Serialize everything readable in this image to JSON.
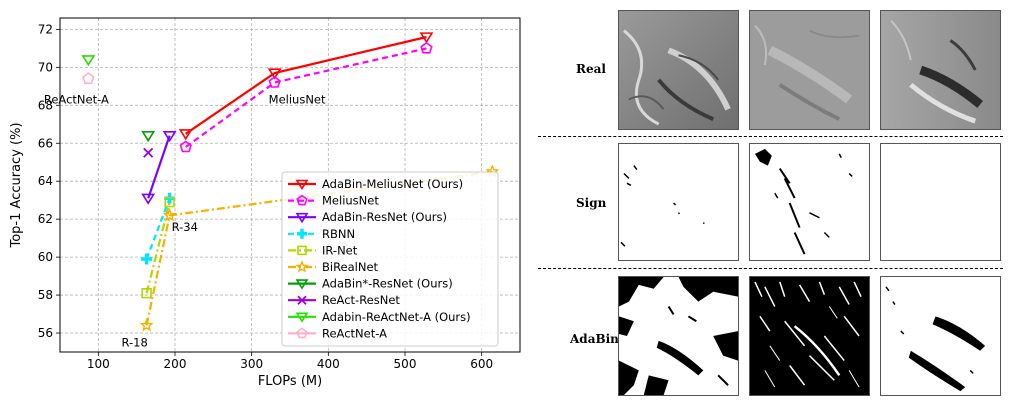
{
  "chart_data": {
    "type": "line",
    "xlabel": "FLOPs (M)",
    "ylabel": "Top-1 Accuracy (%)",
    "xlim": [
      50,
      650
    ],
    "ylim": [
      55,
      72.6
    ],
    "xticks": [
      100,
      200,
      300,
      400,
      500,
      600
    ],
    "yticks": [
      56,
      58,
      60,
      62,
      64,
      66,
      68,
      70,
      72
    ],
    "grid": true,
    "legend_position": "lower-right",
    "series": [
      {
        "name": "AdaBin-MeliusNet (Ours)",
        "color": "#ff0000",
        "marker": "tri-down",
        "linestyle": "solid",
        "x": [
          214,
          330,
          528
        ],
        "y": [
          66.5,
          69.7,
          71.6
        ]
      },
      {
        "name": "MeliusNet",
        "color": "#ff00ff",
        "marker": "pentagon",
        "linestyle": "dashed",
        "x": [
          214,
          330,
          528
        ],
        "y": [
          65.8,
          69.2,
          71.0
        ]
      },
      {
        "name": "AdaBin-ResNet (Ours)",
        "color": "#7b00ff",
        "marker": "tri-down",
        "linestyle": "solid",
        "x": [
          165,
          193
        ],
        "y": [
          63.1,
          66.4
        ]
      },
      {
        "name": "RBNN",
        "color": "#00e5ff",
        "marker": "plus",
        "linestyle": "dashed",
        "x": [
          163,
          193
        ],
        "y": [
          59.9,
          63.1
        ]
      },
      {
        "name": "IR-Net",
        "color": "#b2d600",
        "marker": "square",
        "linestyle": "dashdot",
        "x": [
          163,
          193
        ],
        "y": [
          58.1,
          62.9
        ]
      },
      {
        "name": "BiRealNet",
        "color": "#f5b000",
        "marker": "star",
        "linestyle": "dashdot",
        "x": [
          163,
          193,
          614
        ],
        "y": [
          56.4,
          62.2,
          64.5
        ]
      },
      {
        "name": "AdaBin*-ResNet (Ours)",
        "color": "#00a000",
        "marker": "tri-down",
        "linestyle": "none",
        "x": [
          165
        ],
        "y": [
          66.4
        ]
      },
      {
        "name": "ReAct-ResNet",
        "color": "#9b00d9",
        "marker": "x",
        "linestyle": "none",
        "x": [
          165
        ],
        "y": [
          65.5
        ]
      },
      {
        "name": "Adabin-ReActNet-A (Ours)",
        "color": "#22e000",
        "marker": "tri-down",
        "linestyle": "none",
        "x": [
          87
        ],
        "y": [
          70.4
        ]
      },
      {
        "name": "ReActNet-A",
        "color": "#ffb0c8",
        "marker": "pentagon",
        "linestyle": "none",
        "x": [
          87
        ],
        "y": [
          69.4
        ]
      }
    ],
    "annotations": [
      {
        "text": "ReActNet-A",
        "x": 87,
        "y": 68.3
      },
      {
        "text": "MeliusNet",
        "x": 330,
        "y": 68.3
      },
      {
        "text": "R-34",
        "x": 193,
        "y": 61.6
      },
      {
        "text": "R-18",
        "x": 163,
        "y": 55.5
      }
    ]
  },
  "panel": {
    "rows": [
      "Real",
      "Sign",
      "AdaBin"
    ]
  }
}
